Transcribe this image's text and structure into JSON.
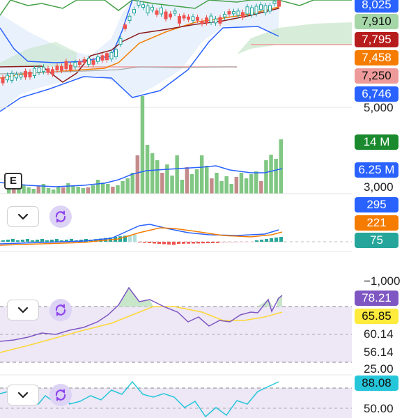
{
  "price_scale": {
    "badges": [
      {
        "label": "8,025",
        "color": "#2962ff"
      },
      {
        "label": "7,910",
        "color": "#a5d6a7"
      },
      {
        "label": "7,795",
        "color": "#b71c1c"
      },
      {
        "label": "7,458",
        "color": "#f57c00"
      },
      {
        "label": "7,250",
        "color": "#ef9a9a"
      },
      {
        "label": "6,746",
        "color": "#2962ff"
      }
    ],
    "ticks": [
      "5,000"
    ]
  },
  "volume_scale": {
    "badges": [
      {
        "label": "14 M",
        "color": "#1b8a2e"
      },
      {
        "label": "6.25 M",
        "color": "#2962ff"
      }
    ],
    "ticks": [
      "3,000"
    ]
  },
  "macd_scale": {
    "badges": [
      {
        "label": "295",
        "color": "#2962ff"
      },
      {
        "label": "221",
        "color": "#f57c00"
      },
      {
        "label": "75",
        "color": "#26a69a"
      }
    ],
    "ticks": [
      "−1,000"
    ]
  },
  "rsi_scale": {
    "badges": [
      {
        "label": "78.21",
        "color": "#7e57c2"
      },
      {
        "label": "65.85",
        "color": "#ffeb3b"
      }
    ],
    "ticks": [
      "60.14",
      "56.14",
      "25.00"
    ]
  },
  "stoch_scale": {
    "badges": [
      {
        "label": "88.08",
        "color": "#26c6da"
      }
    ],
    "ticks": [
      "50.00"
    ]
  },
  "earnings_marker": "E",
  "icons": {
    "collapse": "chevron-down-icon",
    "cycle": "refresh-cycle-icon"
  },
  "colors": {
    "up": "#26a69a",
    "down": "#ef5350",
    "volume_up": "#81c784",
    "volume_down": "#c48b8b",
    "bollinger": "#2962ff",
    "rsi": "#7e57c2",
    "rsi_ma": "#ffeb3b",
    "stoch": "#26c6da"
  }
}
